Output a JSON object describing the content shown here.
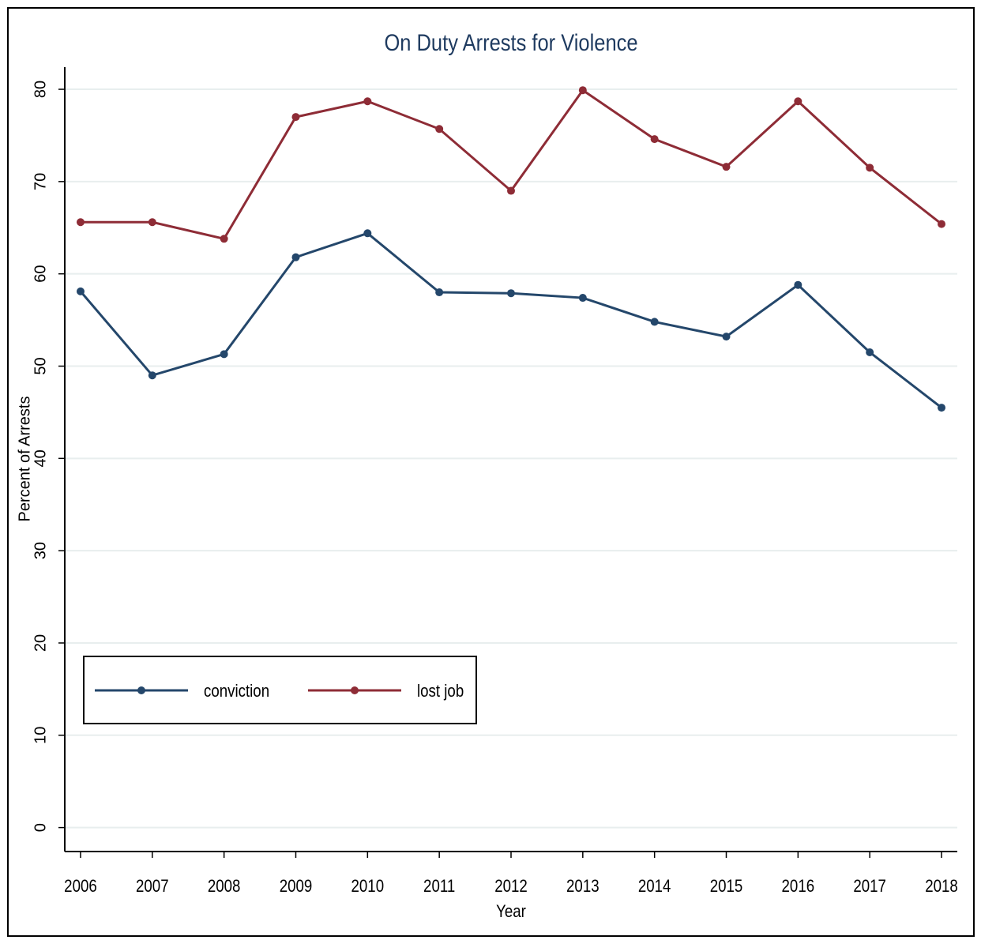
{
  "chart_data": {
    "type": "line",
    "title": "On Duty Arrests for Violence",
    "x_label": "Year",
    "y_label": "Percent of Arrests",
    "x": [
      2006,
      2007,
      2008,
      2009,
      2010,
      2011,
      2012,
      2013,
      2014,
      2015,
      2016,
      2017,
      2018
    ],
    "series": [
      {
        "name": "conviction",
        "color": "#24476b",
        "values": [
          58.1,
          49.0,
          51.3,
          61.8,
          64.4,
          58.0,
          57.9,
          57.4,
          54.8,
          53.2,
          58.8,
          51.5,
          45.5
        ]
      },
      {
        "name": "lost job",
        "color": "#8e2c36",
        "values": [
          65.6,
          65.6,
          63.8,
          77.0,
          78.7,
          75.7,
          69.0,
          79.9,
          74.6,
          71.6,
          78.7,
          71.5,
          65.4
        ]
      }
    ],
    "xlim": [
      2005.78,
      2018.22
    ],
    "xticks": [
      2006,
      2007,
      2008,
      2009,
      2010,
      2011,
      2012,
      2013,
      2014,
      2015,
      2016,
      2017,
      2018
    ],
    "ylim": [
      -2.6,
      82.4
    ],
    "yticks": [
      0,
      10,
      20,
      30,
      40,
      50,
      60,
      70,
      80
    ],
    "grid": true,
    "legend": "bottom-left"
  }
}
